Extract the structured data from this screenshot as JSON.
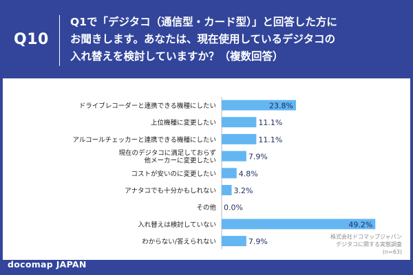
{
  "header": {
    "question_number": "Q10",
    "question_lines": [
      "Q1で「デジタコ（通信型・カード型）」と回答した方に",
      "お聞きします。あなたは、現在使用しているデジタコの",
      "入れ替えを検討していますか？（複数回答）"
    ]
  },
  "chart_data": {
    "type": "bar",
    "orientation": "horizontal",
    "categories": [
      [
        "ドライブレコーダーと連携できる機種にしたい"
      ],
      [
        "上位機種に変更したい"
      ],
      [
        "アルコールチェッカーと連携できる機種にしたい"
      ],
      [
        "現在のデジタコに満足しておらず",
        "他メーカーに変更したい"
      ],
      [
        "コストが安いのに変更したい"
      ],
      [
        "アナタコでも十分かもしれない"
      ],
      [
        "その他"
      ],
      [
        "入れ替えは検討していない"
      ],
      [
        "わからない/答えられない"
      ]
    ],
    "values": [
      23.8,
      11.1,
      11.1,
      7.9,
      4.8,
      3.2,
      0.0,
      49.2,
      7.9
    ],
    "value_labels": [
      "23.8%",
      "11.1%",
      "11.1%",
      "7.9%",
      "4.8%",
      "3.2%",
      "0.0%",
      "49.2%",
      "7.9%"
    ],
    "xlim": [
      0,
      52
    ],
    "bar_color": "#64b6f2",
    "baseline_color": "#b9b9b9",
    "label_color": "#222222",
    "value_label_color": "#1c2a5e",
    "grid": false,
    "legend": "none"
  },
  "source_note": [
    "株式会社ドコマップジャパン",
    "デジタコに関する実態調査",
    "(n=63)"
  ],
  "brand": "docomap JAPAN",
  "colors": {
    "background": "#32459a",
    "panel": "#ffffff",
    "bar": "#64b6f2"
  }
}
